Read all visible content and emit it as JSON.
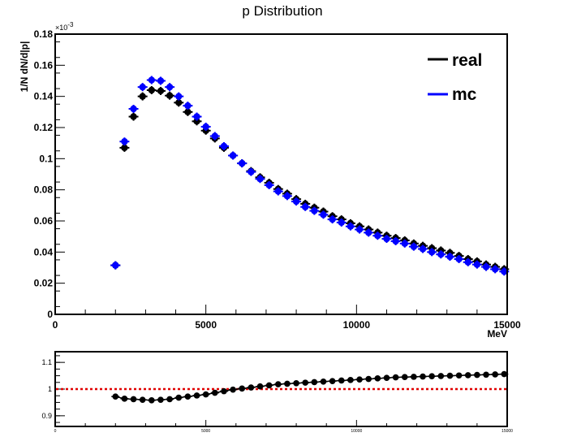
{
  "chart_data": [
    {
      "type": "scatter",
      "title": "p Distribution",
      "xlabel": "MeV",
      "ylabel": "1/N dN/d|p|",
      "y_scale_label": "×10",
      "y_scale_exponent": "-3",
      "xlim": [
        0,
        15000
      ],
      "ylim": [
        0,
        0.18
      ],
      "x_ticks": [
        "0",
        "5000",
        "10000",
        "15000"
      ],
      "y_ticks": [
        "0",
        "0.02",
        "0.04",
        "0.06",
        "0.08",
        "0.1",
        "0.12",
        "0.14",
        "0.16",
        "0.18"
      ],
      "grid": false,
      "legend": "top-right",
      "x": [
        2000,
        2300,
        2600,
        2900,
        3200,
        3500,
        3800,
        4100,
        4400,
        4700,
        5000,
        5300,
        5600,
        5900,
        6200,
        6500,
        6800,
        7100,
        7400,
        7700,
        8000,
        8300,
        8600,
        8900,
        9200,
        9500,
        9800,
        10100,
        10400,
        10700,
        11000,
        11300,
        11600,
        11900,
        12200,
        12500,
        12800,
        13100,
        13400,
        13700,
        14000,
        14300,
        14600,
        14900
      ],
      "series": [
        {
          "name": "real",
          "color": "#000000",
          "values": [
            0.0315,
            0.107,
            0.127,
            0.14,
            0.144,
            0.1435,
            0.1405,
            0.136,
            0.13,
            0.124,
            0.118,
            0.113,
            0.107,
            0.102,
            0.097,
            0.092,
            0.088,
            0.0845,
            0.0805,
            0.0775,
            0.074,
            0.071,
            0.0685,
            0.066,
            0.063,
            0.061,
            0.0585,
            0.0565,
            0.0545,
            0.0525,
            0.0505,
            0.049,
            0.0475,
            0.0455,
            0.044,
            0.0425,
            0.041,
            0.0395,
            0.0375,
            0.0355,
            0.034,
            0.032,
            0.0305,
            0.029
          ]
        },
        {
          "name": "mc",
          "color": "#0000ff",
          "values": [
            0.0315,
            0.111,
            0.132,
            0.146,
            0.1505,
            0.15,
            0.146,
            0.14,
            0.134,
            0.127,
            0.1205,
            0.1145,
            0.108,
            0.102,
            0.097,
            0.0915,
            0.087,
            0.083,
            0.079,
            0.076,
            0.0725,
            0.069,
            0.0665,
            0.064,
            0.061,
            0.059,
            0.0565,
            0.0545,
            0.0525,
            0.0505,
            0.0485,
            0.047,
            0.0455,
            0.0435,
            0.042,
            0.04,
            0.0385,
            0.037,
            0.0355,
            0.0335,
            0.032,
            0.0305,
            0.029,
            0.0275
          ]
        }
      ]
    },
    {
      "type": "scatter",
      "title": "",
      "xlim": [
        0,
        15000
      ],
      "ylim": [
        0.86,
        1.14
      ],
      "x_ticks": [
        "0",
        "5000",
        "10000",
        "15000"
      ],
      "y_ticks": [
        "0.9",
        "1",
        "1.1"
      ],
      "reference_line": {
        "y": 1,
        "color": "#e00000",
        "style": "dotted"
      },
      "x": [
        2000,
        2300,
        2600,
        2900,
        3200,
        3500,
        3800,
        4100,
        4400,
        4700,
        5000,
        5300,
        5600,
        5900,
        6200,
        6500,
        6800,
        7100,
        7400,
        7700,
        8000,
        8300,
        8600,
        8900,
        9200,
        9500,
        9800,
        10100,
        10400,
        10700,
        11000,
        11300,
        11600,
        11900,
        12200,
        12500,
        12800,
        13100,
        13400,
        13700,
        14000,
        14300,
        14600,
        14900
      ],
      "series": [
        {
          "color": "#000000",
          "values": [
            0.972,
            0.964,
            0.962,
            0.96,
            0.958,
            0.96,
            0.962,
            0.968,
            0.972,
            0.976,
            0.98,
            0.986,
            0.992,
            0.998,
            1.002,
            1.006,
            1.01,
            1.014,
            1.018,
            1.02,
            1.022,
            1.024,
            1.026,
            1.028,
            1.03,
            1.032,
            1.034,
            1.036,
            1.038,
            1.04,
            1.042,
            1.044,
            1.045,
            1.046,
            1.047,
            1.048,
            1.049,
            1.05,
            1.051,
            1.052,
            1.053,
            1.054,
            1.055,
            1.056
          ]
        }
      ]
    }
  ]
}
